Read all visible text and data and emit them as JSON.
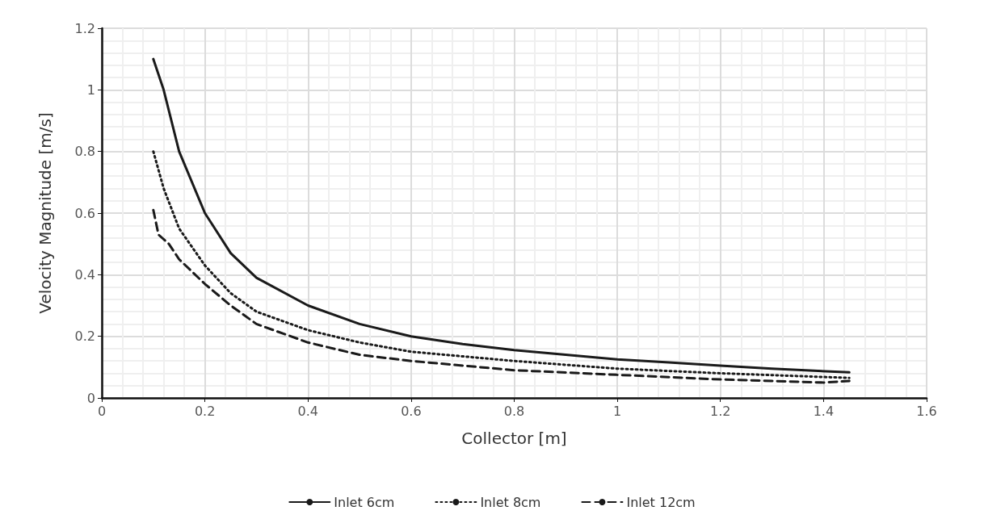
{
  "chart_data": {
    "type": "line",
    "xlabel": "Collector [m]",
    "ylabel": "Velocity Magnitude [m/s]",
    "xlim": [
      0,
      1.6
    ],
    "xticks": [
      0,
      0.2,
      0.4,
      0.6,
      0.8,
      1,
      1.2,
      1.4,
      1.6
    ],
    "ylim": [
      0,
      1.2
    ],
    "yticks": [
      0,
      0.2,
      0.4,
      0.6,
      0.8,
      1,
      1.2
    ],
    "grid": true,
    "legend": "bottom",
    "marker": "none",
    "series": [
      {
        "name": "Inlet 6cm",
        "color": "#1a1a1a",
        "line_style": "solid",
        "x": [
          0.1,
          0.12,
          0.15,
          0.2,
          0.25,
          0.3,
          0.4,
          0.5,
          0.6,
          0.7,
          0.8,
          0.9,
          1.0,
          1.1,
          1.2,
          1.3,
          1.45
        ],
        "values": [
          1.1,
          1.0,
          0.8,
          0.6,
          0.47,
          0.39,
          0.3,
          0.24,
          0.2,
          0.175,
          0.155,
          0.14,
          0.125,
          0.115,
          0.105,
          0.095,
          0.083
        ]
      },
      {
        "name": "Inlet 8cm",
        "color": "#1a1a1a",
        "line_style": "dotted",
        "x": [
          0.1,
          0.12,
          0.15,
          0.2,
          0.25,
          0.3,
          0.4,
          0.5,
          0.6,
          0.8,
          1.0,
          1.2,
          1.45
        ],
        "values": [
          0.8,
          0.68,
          0.55,
          0.43,
          0.34,
          0.28,
          0.22,
          0.18,
          0.15,
          0.12,
          0.095,
          0.08,
          0.065
        ]
      },
      {
        "name": "Inlet 12cm",
        "color": "#1a1a1a",
        "line_style": "dashed",
        "x": [
          0.1,
          0.11,
          0.13,
          0.15,
          0.2,
          0.25,
          0.3,
          0.4,
          0.5,
          0.6,
          0.8,
          1.0,
          1.2,
          1.4,
          1.45
        ],
        "values": [
          0.61,
          0.53,
          0.5,
          0.45,
          0.37,
          0.3,
          0.24,
          0.18,
          0.14,
          0.12,
          0.09,
          0.075,
          0.06,
          0.05,
          0.055
        ]
      }
    ]
  }
}
